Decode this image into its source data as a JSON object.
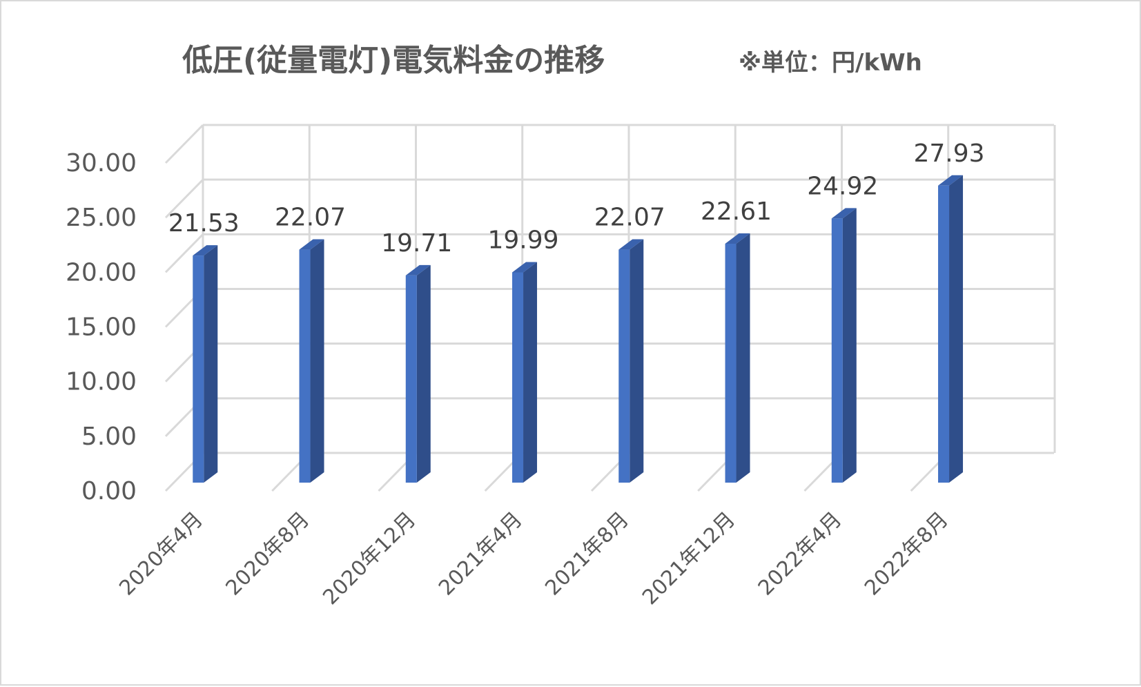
{
  "chart_data": {
    "type": "bar",
    "style": "3d-column",
    "title": "低圧(従量電灯)電気料金の推移",
    "subtitle": "※単位：円/kWh",
    "categories": [
      "2020年4月",
      "2020年8月",
      "2020年12月",
      "2021年4月",
      "2021年8月",
      "2021年12月",
      "2022年4月",
      "2022年8月"
    ],
    "values": [
      21.53,
      22.07,
      19.71,
      19.99,
      22.07,
      22.61,
      24.92,
      27.93
    ],
    "data_labels": [
      "21.53",
      "22.07",
      "19.71",
      "19.99",
      "22.07",
      "22.61",
      "24.92",
      "27.93"
    ],
    "yticks": [
      "0.00",
      "5.00",
      "10.00",
      "15.00",
      "20.00",
      "25.00",
      "30.00"
    ],
    "ylim": [
      0,
      30
    ],
    "ystep": 5,
    "grid": true,
    "legend": "none",
    "colors": {
      "bar_front": "#4472c4",
      "bar_side": "#2f4e8a",
      "bar_top": "#3a62ad",
      "grid": "#d9d9d9",
      "text": "#595959"
    }
  }
}
